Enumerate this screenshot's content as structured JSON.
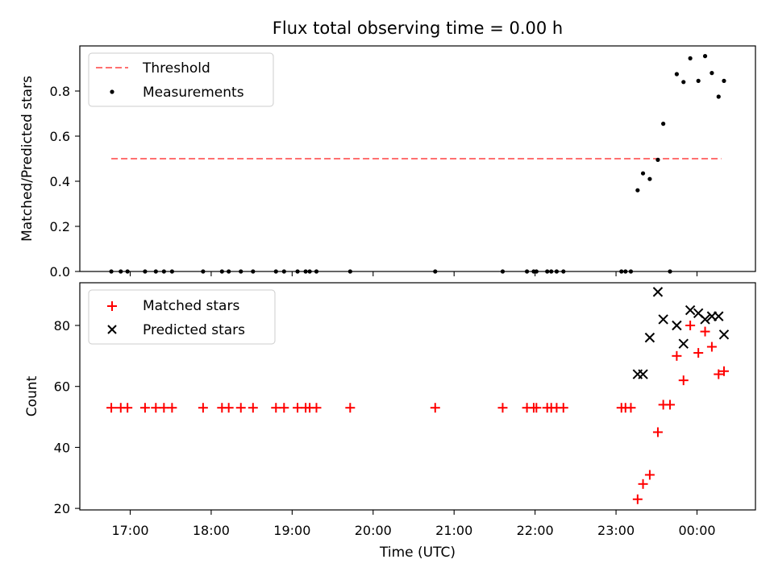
{
  "chart_data": [
    {
      "type": "scatter",
      "title": "Flux total observing time = 0.00 h",
      "ylabel": "Matched/Predicted stars",
      "xlabel": "",
      "ylim": [
        0,
        1.0
      ],
      "yticks": [
        0.0,
        0.2,
        0.4,
        0.6,
        0.8
      ],
      "ytick_labels": [
        "0.0",
        "0.2",
        "0.4",
        "0.6",
        "0.8"
      ],
      "legend": {
        "placement": "upper-left",
        "entries": [
          "Threshold",
          "Measurements"
        ]
      },
      "threshold": {
        "name": "Threshold",
        "value": 0.5,
        "x_range": [
          "16:46",
          "00:18"
        ],
        "color": "#ff7070",
        "style": "dashed"
      },
      "series": [
        {
          "name": "Measurements",
          "color": "#000000",
          "marker": "dot",
          "points": [
            [
              "16:46",
              0.0
            ],
            [
              "16:53",
              0.0
            ],
            [
              "16:58",
              0.0
            ],
            [
              "17:11",
              0.0
            ],
            [
              "17:19",
              0.0
            ],
            [
              "17:25",
              0.0
            ],
            [
              "17:31",
              0.0
            ],
            [
              "17:54",
              0.0
            ],
            [
              "18:08",
              0.0
            ],
            [
              "18:13",
              0.0
            ],
            [
              "18:22",
              0.0
            ],
            [
              "18:31",
              0.0
            ],
            [
              "18:48",
              0.0
            ],
            [
              "18:54",
              0.0
            ],
            [
              "19:04",
              0.0
            ],
            [
              "19:10",
              0.0
            ],
            [
              "19:13",
              0.0
            ],
            [
              "19:18",
              0.0
            ],
            [
              "19:43",
              0.0
            ],
            [
              "20:46",
              0.0
            ],
            [
              "21:36",
              0.0
            ],
            [
              "21:54",
              0.0
            ],
            [
              "21:59",
              0.0
            ],
            [
              "22:01",
              0.0
            ],
            [
              "22:09",
              0.0
            ],
            [
              "22:12",
              0.0
            ],
            [
              "22:16",
              0.0
            ],
            [
              "22:21",
              0.0
            ],
            [
              "23:04",
              0.0
            ],
            [
              "23:07",
              0.0
            ],
            [
              "23:11",
              0.0
            ],
            [
              "23:40",
              0.0
            ],
            [
              "23:16",
              0.36
            ],
            [
              "23:20",
              0.435
            ],
            [
              "23:25",
              0.41
            ],
            [
              "23:31",
              0.495
            ],
            [
              "23:35",
              0.655
            ],
            [
              "23:45",
              0.875
            ],
            [
              "23:50",
              0.84
            ],
            [
              "23:55",
              0.945
            ],
            [
              "00:01",
              0.845
            ],
            [
              "00:06",
              0.955
            ],
            [
              "00:11",
              0.88
            ],
            [
              "00:16",
              0.775
            ],
            [
              "00:20",
              0.845
            ]
          ]
        }
      ]
    },
    {
      "type": "scatter",
      "title": "",
      "ylabel": "Count",
      "xlabel": "Time (UTC)",
      "ylim": [
        19.5,
        94
      ],
      "yticks": [
        20,
        40,
        60,
        80
      ],
      "ytick_labels": [
        "20",
        "40",
        "60",
        "80"
      ],
      "xticks": [
        "17:00",
        "18:00",
        "19:00",
        "20:00",
        "21:00",
        "22:00",
        "23:00",
        "00:00"
      ],
      "legend": {
        "placement": "upper-left",
        "entries": [
          "Matched stars",
          "Predicted stars"
        ]
      },
      "series": [
        {
          "name": "Matched stars",
          "color": "#ff0000",
          "marker": "plus",
          "points": [
            [
              "16:46",
              53
            ],
            [
              "16:53",
              53
            ],
            [
              "16:58",
              53
            ],
            [
              "17:11",
              53
            ],
            [
              "17:19",
              53
            ],
            [
              "17:25",
              53
            ],
            [
              "17:31",
              53
            ],
            [
              "17:54",
              53
            ],
            [
              "18:08",
              53
            ],
            [
              "18:13",
              53
            ],
            [
              "18:22",
              53
            ],
            [
              "18:31",
              53
            ],
            [
              "18:48",
              53
            ],
            [
              "18:54",
              53
            ],
            [
              "19:04",
              53
            ],
            [
              "19:10",
              53
            ],
            [
              "19:13",
              53
            ],
            [
              "19:18",
              53
            ],
            [
              "19:43",
              53
            ],
            [
              "20:46",
              53
            ],
            [
              "21:36",
              53
            ],
            [
              "21:54",
              53
            ],
            [
              "21:59",
              53
            ],
            [
              "22:01",
              53
            ],
            [
              "22:09",
              53
            ],
            [
              "22:12",
              53
            ],
            [
              "22:16",
              53
            ],
            [
              "22:21",
              53
            ],
            [
              "23:04",
              53
            ],
            [
              "23:07",
              53
            ],
            [
              "23:11",
              53
            ],
            [
              "23:16",
              23
            ],
            [
              "23:20",
              28
            ],
            [
              "23:25",
              31
            ],
            [
              "23:31",
              45
            ],
            [
              "23:35",
              54
            ],
            [
              "23:40",
              54
            ],
            [
              "23:45",
              70
            ],
            [
              "23:50",
              62
            ],
            [
              "23:55",
              80
            ],
            [
              "00:01",
              71
            ],
            [
              "00:06",
              78
            ],
            [
              "00:11",
              73
            ],
            [
              "00:16",
              64
            ],
            [
              "00:20",
              65
            ]
          ]
        },
        {
          "name": "Predicted stars",
          "color": "#000000",
          "marker": "x",
          "points": [
            [
              "23:16",
              64
            ],
            [
              "23:20",
              64
            ],
            [
              "23:25",
              76
            ],
            [
              "23:31",
              91
            ],
            [
              "23:35",
              82
            ],
            [
              "23:45",
              80
            ],
            [
              "23:50",
              74
            ],
            [
              "23:55",
              85
            ],
            [
              "00:01",
              84
            ],
            [
              "00:06",
              82
            ],
            [
              "00:11",
              83
            ],
            [
              "00:16",
              83
            ],
            [
              "00:20",
              77
            ]
          ]
        }
      ]
    }
  ]
}
